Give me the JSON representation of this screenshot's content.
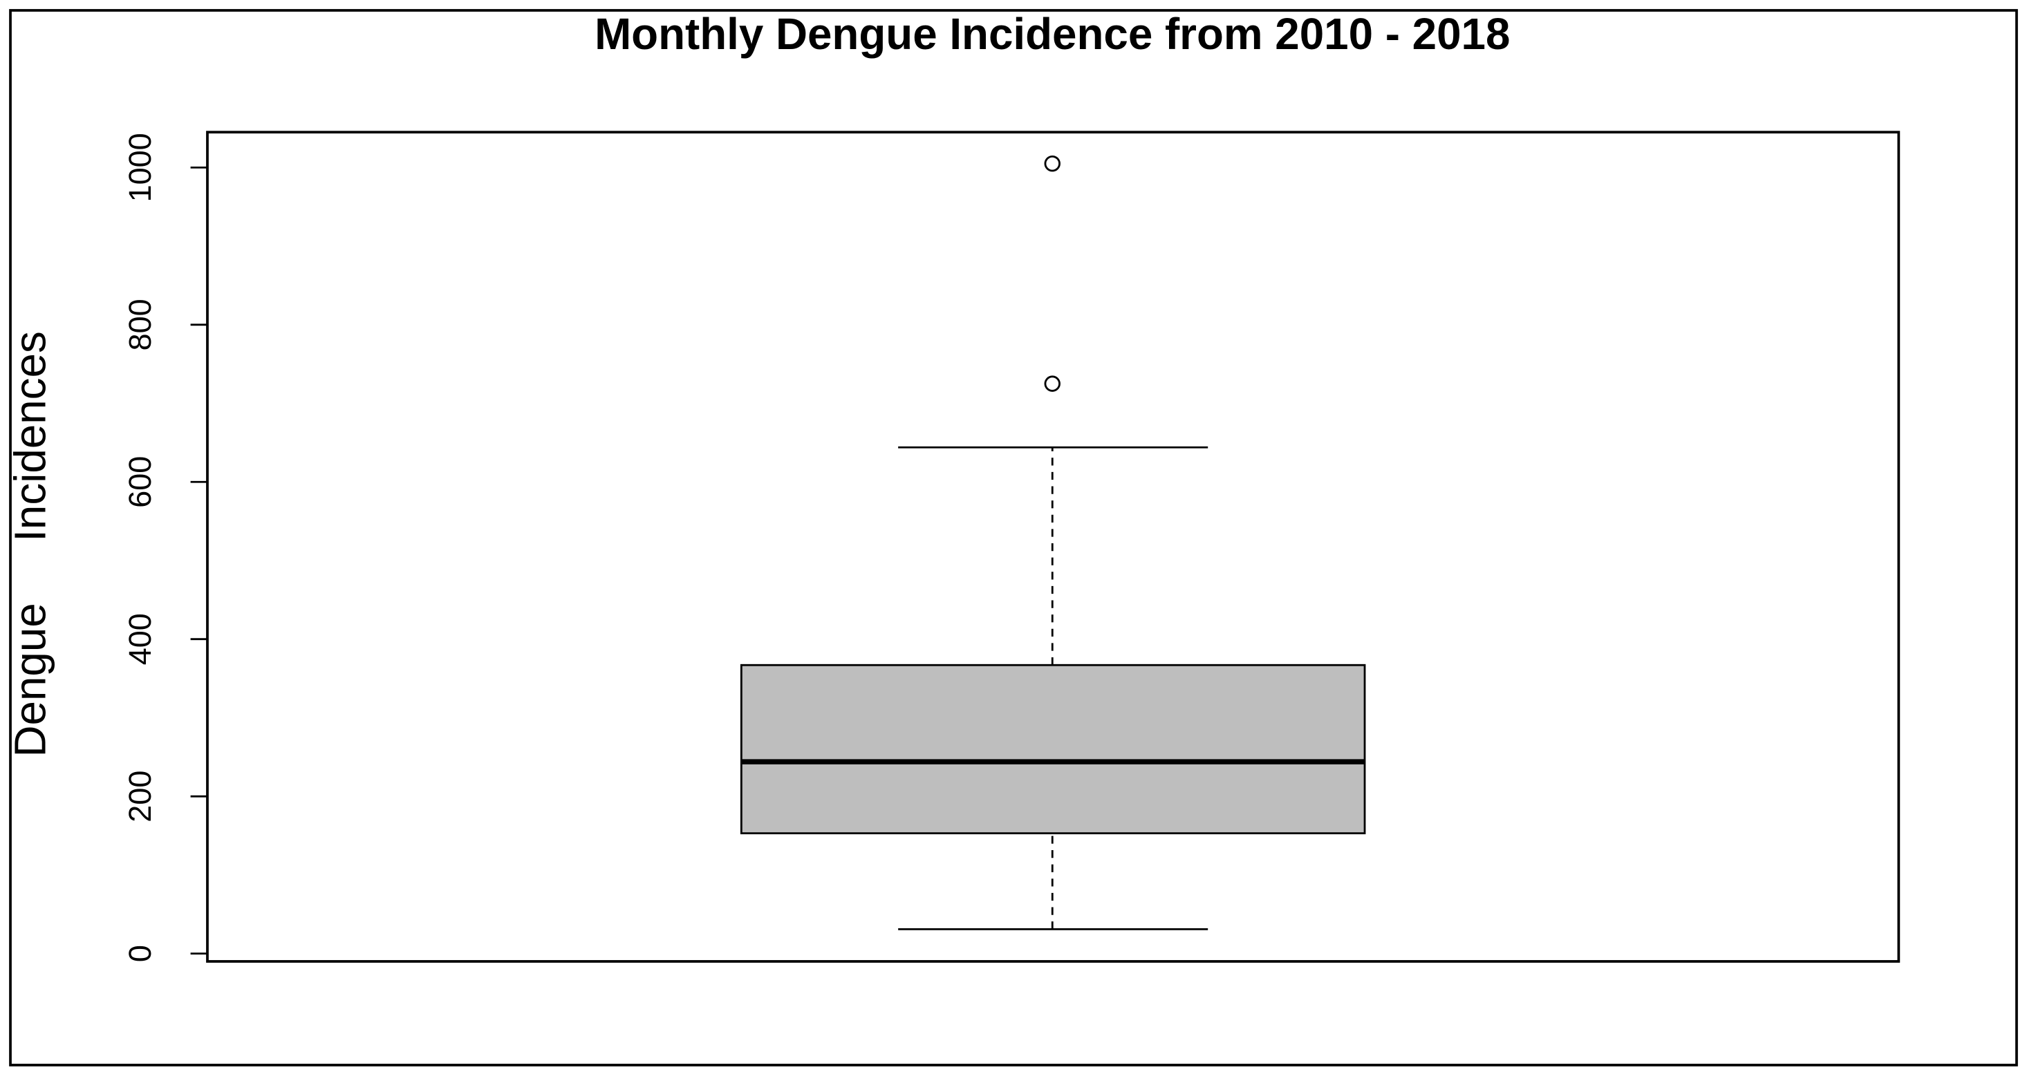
{
  "chart_data": {
    "type": "box",
    "title": "Monthly Dengue Incidence from 2010 - 2018",
    "y_label": "Dengue     Incidences",
    "ylim": [
      -10,
      1045
    ],
    "yticks": [
      0,
      200,
      400,
      600,
      800,
      1000
    ],
    "color": "#bebebe",
    "whisker_low": 31,
    "q1": 153,
    "median": 244,
    "q3": 367,
    "whisker_high": 644,
    "outliers": [
      1005,
      725
    ]
  }
}
